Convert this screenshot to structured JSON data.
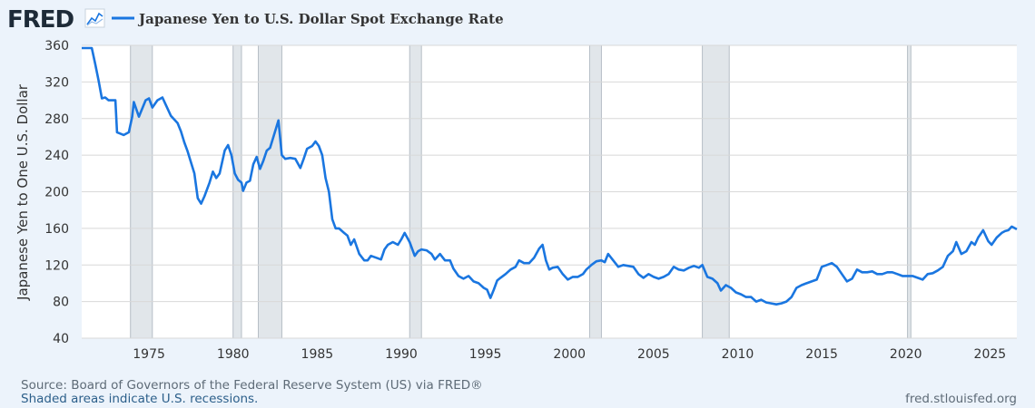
{
  "brand": {
    "logo_text": "FRED",
    "logo_icon": "trend-line-icon"
  },
  "colors": {
    "background": "#ecf3fb",
    "plot_background": "#ffffff",
    "line": "#1a76e0",
    "recession": "#e1e6ea",
    "grid": "#d8d8d8",
    "text": "#333333",
    "muted": "#5e6b77",
    "link": "#2c5f8a"
  },
  "footer": {
    "source": "Source: Board of Governors of the Federal Reserve System (US) via FRED®",
    "recession_note": "Shaded areas indicate U.S. recessions.",
    "site": "fred.stlouisfed.org"
  },
  "chart_data": {
    "type": "line",
    "title": "Japanese Yen to U.S. Dollar Spot Exchange Rate",
    "xlabel": "",
    "ylabel": "Japanese Yen to One U.S. Dollar",
    "xlim": [
      1971.0,
      2026.6
    ],
    "ylim": [
      40,
      360
    ],
    "yticks": [
      40,
      80,
      120,
      160,
      200,
      240,
      280,
      320,
      360
    ],
    "xticks": [
      1975,
      1980,
      1985,
      1990,
      1995,
      2000,
      2005,
      2010,
      2015,
      2020,
      2025
    ],
    "grid": true,
    "legend": "top-left",
    "recessions": [
      [
        1973.9,
        1975.2
      ],
      [
        1980.0,
        1980.5
      ],
      [
        1981.5,
        1982.9
      ],
      [
        1990.5,
        1991.2
      ],
      [
        2001.2,
        2001.9
      ],
      [
        2007.9,
        2009.5
      ],
      [
        2020.1,
        2020.3
      ]
    ],
    "series": [
      {
        "name": "Japanese Yen to U.S. Dollar Spot Exchange Rate",
        "x": [
          1971.0,
          1971.4,
          1971.6,
          1971.8,
          1972.0,
          1972.2,
          1972.4,
          1972.6,
          1972.8,
          1973.0,
          1973.1,
          1973.5,
          1973.8,
          1974.0,
          1974.1,
          1974.4,
          1974.8,
          1975.0,
          1975.2,
          1975.5,
          1975.8,
          1976.0,
          1976.3,
          1976.7,
          1976.9,
          1977.1,
          1977.3,
          1977.5,
          1977.7,
          1977.9,
          1978.1,
          1978.3,
          1978.6,
          1978.8,
          1979.0,
          1979.2,
          1979.5,
          1979.7,
          1979.9,
          1980.1,
          1980.3,
          1980.5,
          1980.6,
          1980.8,
          1981.0,
          1981.2,
          1981.4,
          1981.6,
          1981.8,
          1982.0,
          1982.2,
          1982.4,
          1982.7,
          1982.9,
          1983.1,
          1983.4,
          1983.7,
          1984.0,
          1984.2,
          1984.4,
          1984.7,
          1984.9,
          1985.1,
          1985.3,
          1985.5,
          1985.7,
          1985.9,
          1986.1,
          1986.3,
          1986.6,
          1986.8,
          1987.0,
          1987.2,
          1987.5,
          1987.8,
          1988.0,
          1988.2,
          1988.5,
          1988.8,
          1989.0,
          1989.2,
          1989.5,
          1989.8,
          1990.0,
          1990.2,
          1990.5,
          1990.8,
          1991.0,
          1991.2,
          1991.5,
          1991.8,
          1992.0,
          1992.3,
          1992.6,
          1992.9,
          1993.1,
          1993.4,
          1993.7,
          1994.0,
          1994.3,
          1994.6,
          1994.9,
          1995.1,
          1995.3,
          1995.5,
          1995.7,
          1995.9,
          1996.2,
          1996.5,
          1996.8,
          1997.0,
          1997.3,
          1997.6,
          1997.9,
          1998.2,
          1998.4,
          1998.6,
          1998.8,
          1999.0,
          1999.3,
          1999.6,
          1999.9,
          2000.2,
          2000.5,
          2000.8,
          2001.0,
          2001.3,
          2001.6,
          2001.9,
          2002.1,
          2002.3,
          2002.6,
          2002.9,
          2003.2,
          2003.5,
          2003.8,
          2004.1,
          2004.4,
          2004.7,
          2005.0,
          2005.3,
          2005.6,
          2005.9,
          2006.2,
          2006.5,
          2006.8,
          2007.1,
          2007.4,
          2007.7,
          2007.9,
          2008.2,
          2008.5,
          2008.8,
          2009.0,
          2009.3,
          2009.6,
          2009.9,
          2010.2,
          2010.5,
          2010.8,
          2011.1,
          2011.4,
          2011.7,
          2012.0,
          2012.3,
          2012.6,
          2012.9,
          2013.2,
          2013.5,
          2013.8,
          2014.1,
          2014.4,
          2014.7,
          2015.0,
          2015.3,
          2015.6,
          2015.9,
          2016.2,
          2016.5,
          2016.8,
          2017.1,
          2017.4,
          2017.7,
          2018.0,
          2018.3,
          2018.6,
          2018.9,
          2019.2,
          2019.5,
          2019.8,
          2020.1,
          2020.4,
          2020.7,
          2021.0,
          2021.3,
          2021.6,
          2021.9,
          2022.2,
          2022.5,
          2022.8,
          2023.0,
          2023.3,
          2023.6,
          2023.9,
          2024.1,
          2024.3,
          2024.6,
          2024.9,
          2025.1,
          2025.4,
          2025.7,
          2025.9,
          2026.1,
          2026.3,
          2026.6
        ],
        "values": [
          357,
          357,
          357,
          340,
          322,
          302,
          303,
          300,
          300,
          300,
          265,
          262,
          265,
          282,
          298,
          282,
          300,
          302,
          292,
          300,
          303,
          295,
          283,
          275,
          266,
          254,
          244,
          232,
          220,
          193,
          187,
          195,
          210,
          222,
          215,
          220,
          245,
          251,
          240,
          220,
          213,
          210,
          201,
          210,
          212,
          230,
          238,
          225,
          234,
          245,
          248,
          260,
          278,
          240,
          236,
          237,
          236,
          226,
          236,
          247,
          250,
          255,
          250,
          240,
          215,
          200,
          170,
          160,
          160,
          155,
          152,
          142,
          148,
          132,
          125,
          125,
          130,
          128,
          126,
          137,
          142,
          145,
          142,
          148,
          155,
          145,
          130,
          135,
          137,
          136,
          132,
          126,
          132,
          125,
          125,
          116,
          108,
          105,
          108,
          102,
          100,
          95,
          93,
          84,
          93,
          103,
          106,
          110,
          115,
          118,
          125,
          122,
          122,
          128,
          138,
          142,
          125,
          115,
          117,
          118,
          110,
          104,
          107,
          107,
          110,
          115,
          120,
          124,
          125,
          123,
          132,
          125,
          118,
          120,
          119,
          118,
          110,
          106,
          110,
          107,
          105,
          107,
          110,
          118,
          115,
          114,
          117,
          119,
          117,
          120,
          107,
          105,
          100,
          92,
          98,
          95,
          90,
          88,
          85,
          85,
          80,
          82,
          79,
          78,
          77,
          78,
          80,
          85,
          95,
          98,
          100,
          102,
          104,
          118,
          120,
          122,
          118,
          110,
          102,
          105,
          115,
          112,
          112,
          113,
          110,
          110,
          112,
          112,
          110,
          108,
          108,
          108,
          106,
          104,
          110,
          111,
          114,
          118,
          130,
          135,
          145,
          132,
          135,
          145,
          142,
          150,
          158,
          146,
          142,
          150,
          155,
          157,
          158,
          162,
          159
        ]
      }
    ]
  }
}
